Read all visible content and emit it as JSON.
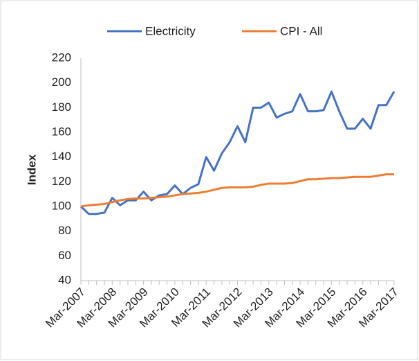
{
  "chart_data": {
    "type": "line",
    "y_label": "Index",
    "categories": [
      "Mar-2007",
      null,
      null,
      null,
      "Mar-2008",
      null,
      null,
      null,
      "Mar-2009",
      null,
      null,
      null,
      "Mar-2010",
      null,
      null,
      null,
      "Mar-2011",
      null,
      null,
      null,
      "Mar-2012",
      null,
      null,
      null,
      "Mar-2013",
      null,
      null,
      null,
      "Mar-2014",
      null,
      null,
      null,
      "Mar-2015",
      null,
      null,
      null,
      "Mar-2016",
      null,
      null,
      null,
      "Mar-2017"
    ],
    "series": [
      {
        "name": "Electricity",
        "color": "#4472c4",
        "values": [
          100,
          94,
          94,
          95,
          107,
          101,
          105,
          105,
          112,
          105,
          109,
          110,
          117,
          110,
          115,
          118,
          140,
          129,
          143,
          152,
          165,
          152,
          180,
          180,
          184,
          172,
          175,
          177,
          191,
          177,
          177,
          178,
          193,
          177,
          163,
          163,
          171,
          163,
          182,
          182,
          193
        ]
      },
      {
        "name": "CPI - All",
        "color": "#ed7d31",
        "values": [
          100,
          101,
          101.5,
          102,
          103.5,
          105,
          106,
          106.5,
          106.5,
          107,
          107.5,
          108,
          109,
          110,
          110.5,
          111,
          112,
          113.5,
          115,
          115.5,
          115.5,
          115.5,
          116,
          117.5,
          118.5,
          118.5,
          118.5,
          119,
          120.5,
          122,
          122,
          122.5,
          123,
          123,
          123.5,
          124,
          124,
          124,
          125,
          126,
          126
        ]
      }
    ],
    "ylim": [
      40,
      220
    ],
    "yticks": [
      40,
      60,
      80,
      100,
      120,
      140,
      160,
      180,
      200,
      220
    ],
    "grid": false,
    "legend": "top"
  }
}
